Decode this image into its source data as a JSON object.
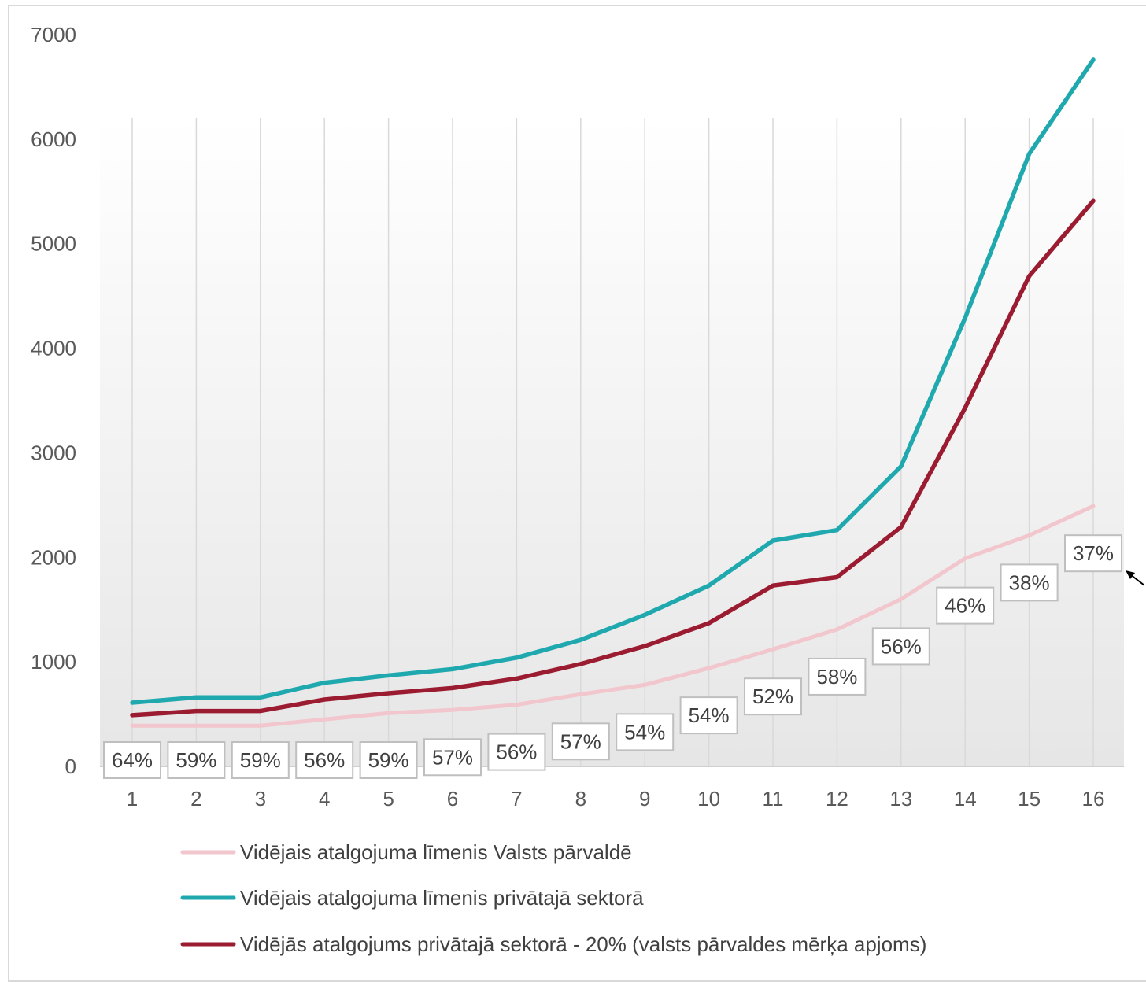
{
  "chart_data": {
    "type": "line",
    "title": "",
    "xlabel": "",
    "ylabel": "",
    "categories": [
      "1",
      "2",
      "3",
      "4",
      "5",
      "6",
      "7",
      "8",
      "9",
      "10",
      "11",
      "12",
      "13",
      "14",
      "15",
      "16"
    ],
    "ylim": [
      0,
      7000
    ],
    "yticks": [
      "0",
      "1000",
      "2000",
      "3000",
      "4000",
      "5000",
      "6000",
      "7000"
    ],
    "grid": "vertical lines at each category",
    "legend_position": "bottom",
    "series": [
      {
        "name": "Vidējais atalgojuma līmenis Valsts pārvaldē",
        "color": "#f2c6cd",
        "values": [
          390,
          390,
          390,
          450,
          510,
          540,
          590,
          690,
          780,
          940,
          1120,
          1310,
          1600,
          1990,
          2210,
          2490
        ]
      },
      {
        "name": "Vidējais atalgojuma līmenis privātajā sektorā",
        "color": "#1fa9ae",
        "values": [
          610,
          660,
          660,
          800,
          870,
          930,
          1040,
          1210,
          1450,
          1730,
          2160,
          2260,
          2870,
          4290,
          5860,
          6760
        ]
      },
      {
        "name": "Vidējās atalgojums privātajā sektorā - 20% (valsts pārvaldes mērķa apjoms)",
        "color": "#9b1b30",
        "values": [
          490,
          530,
          530,
          640,
          700,
          750,
          840,
          980,
          1150,
          1370,
          1730,
          1810,
          2290,
          3430,
          4690,
          5410
        ]
      }
    ],
    "data_labels": [
      "64%",
      "59%",
      "59%",
      "56%",
      "59%",
      "57%",
      "56%",
      "57%",
      "54%",
      "54%",
      "52%",
      "58%",
      "56%",
      "46%",
      "38%",
      "37%"
    ]
  }
}
